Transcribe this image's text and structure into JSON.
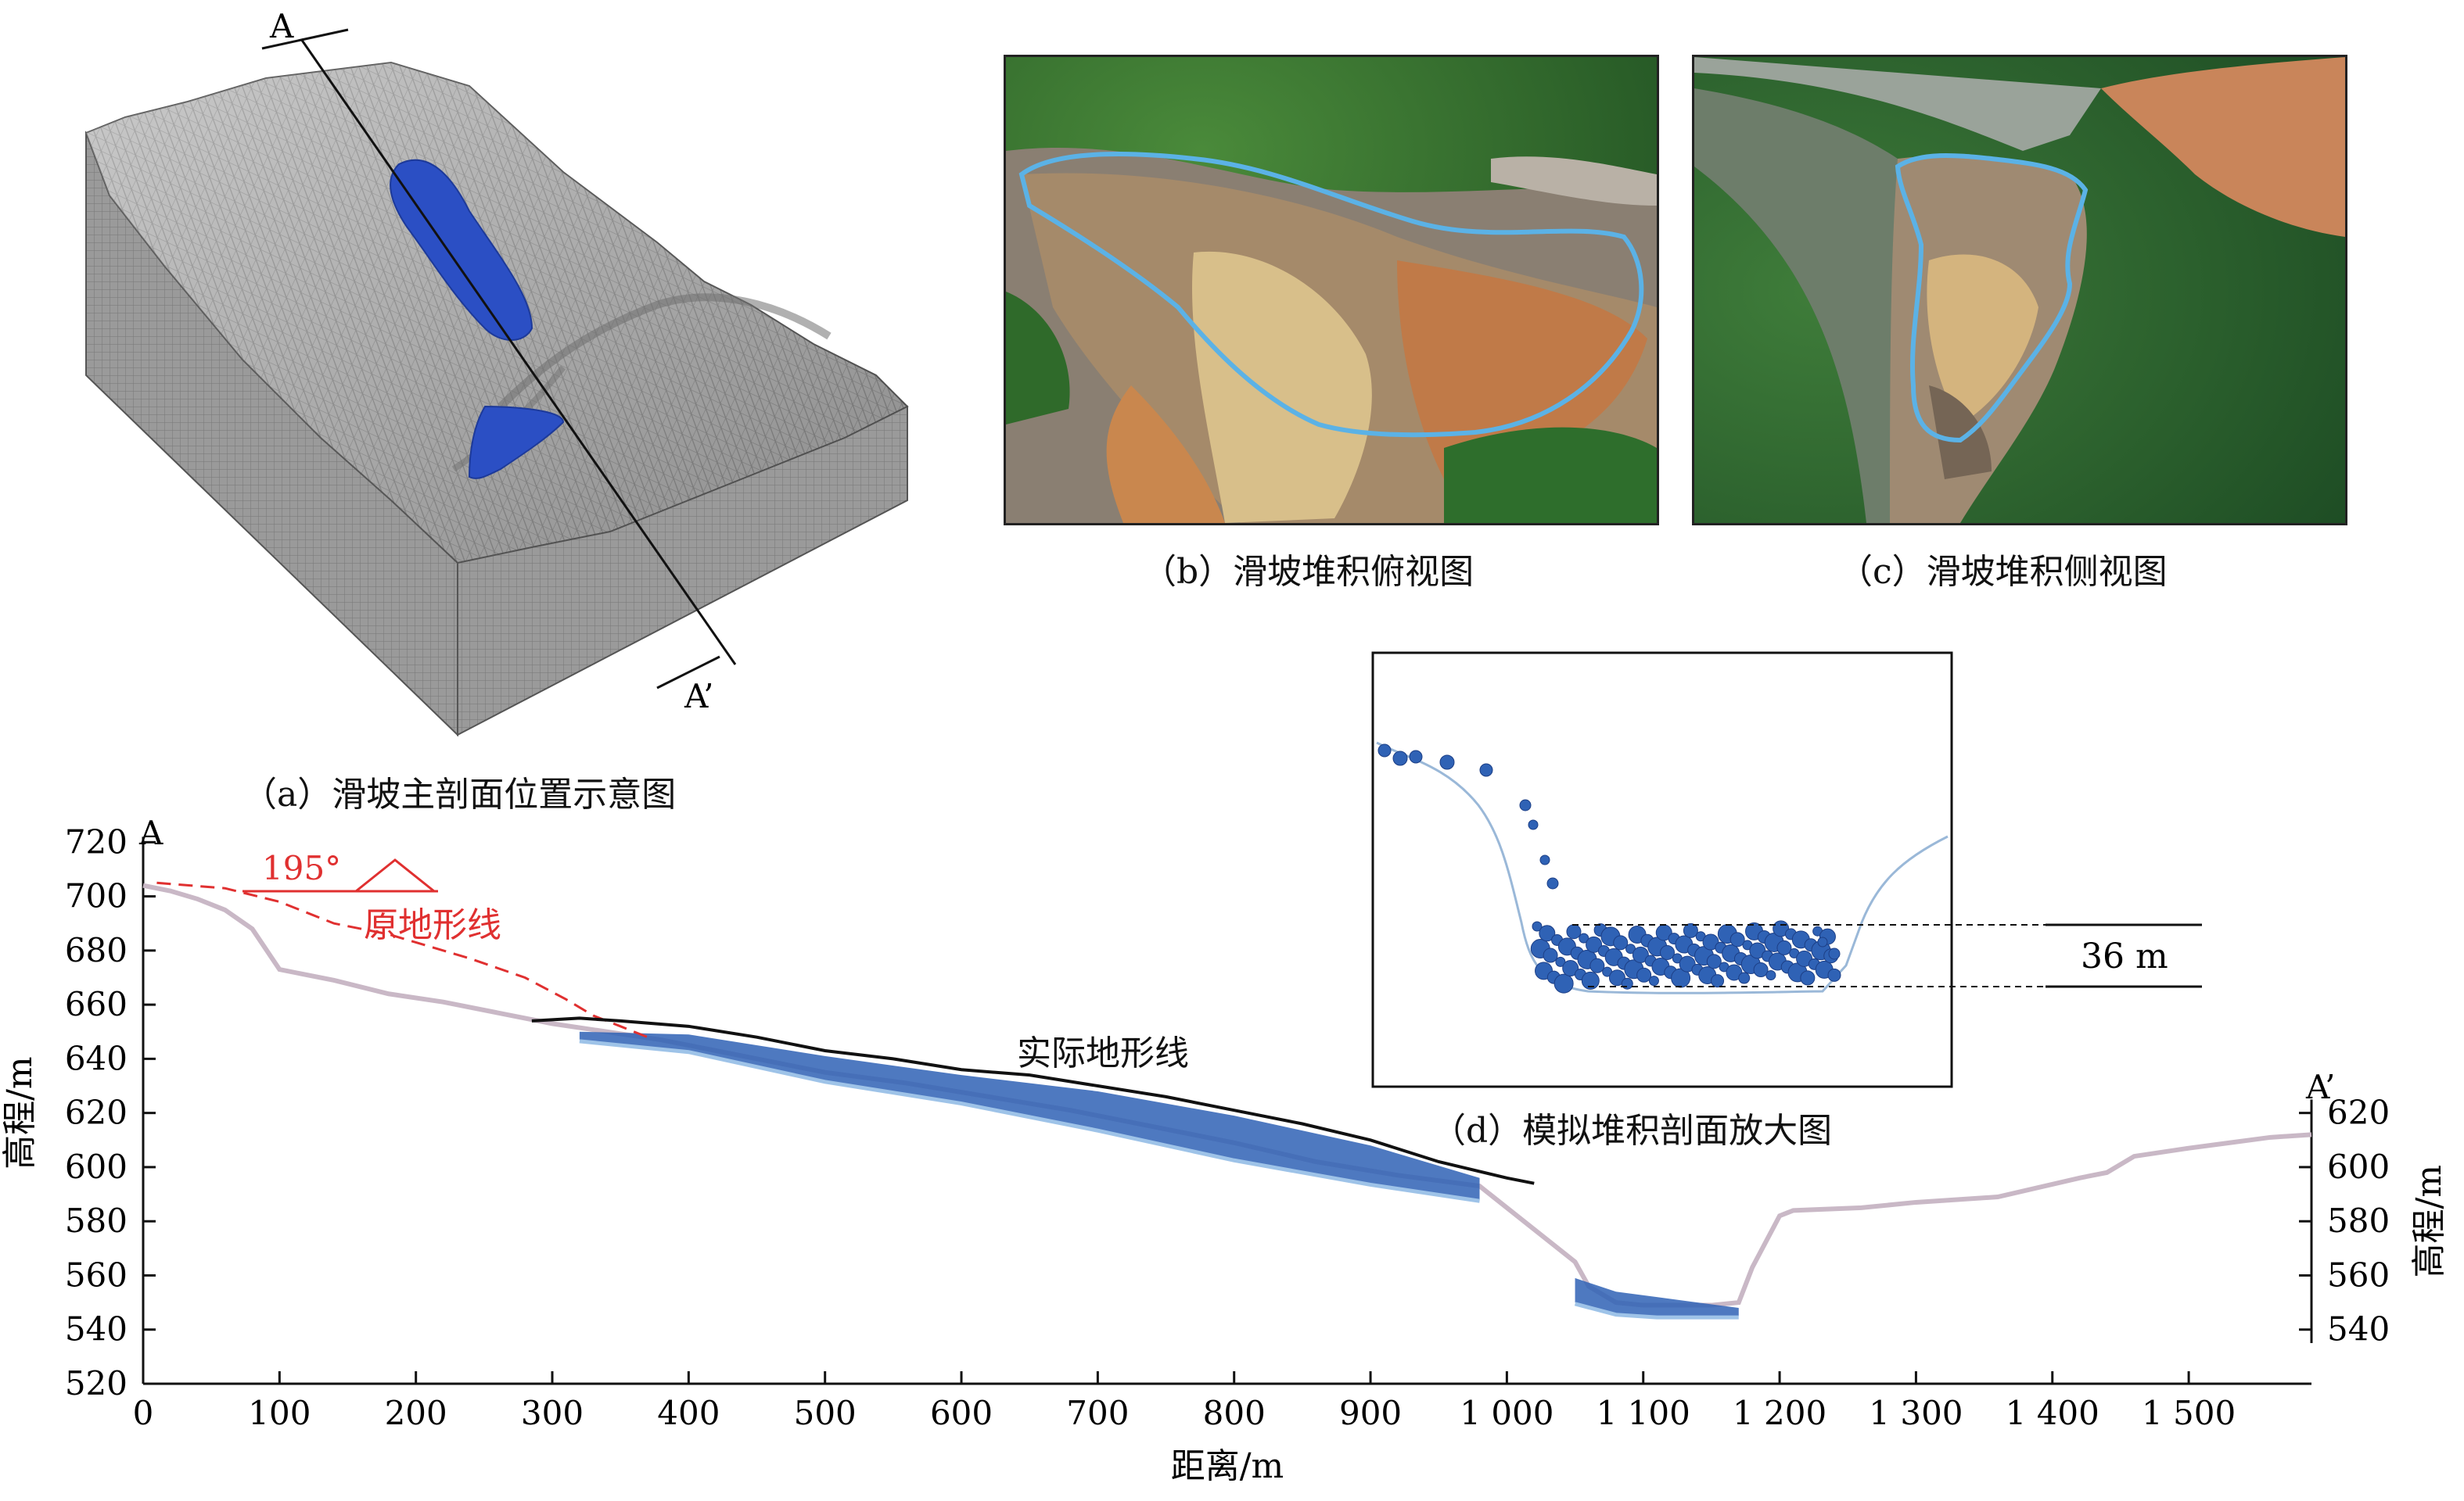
{
  "panels": {
    "a": {
      "caption": "（a）滑坡主剖面位置示意图",
      "label_start": "A",
      "label_end": "A’"
    },
    "b": {
      "caption": "（b）滑坡堆积俯视图"
    },
    "c": {
      "caption": "（c）滑坡堆积侧视图"
    },
    "d": {
      "caption": "（d）模拟堆积剖面放大图",
      "thickness_label": "36 m"
    }
  },
  "profile": {
    "label_start": "A",
    "label_end": "A’",
    "direction_label": "195°",
    "original_line_label": "原地形线",
    "actual_line_label": "实际地形线"
  },
  "chart_data": {
    "type": "line",
    "xlabel": "距离/m",
    "ylabel_left": "高程/m",
    "ylabel_right": "高程/m",
    "xlim": [
      0,
      1590
    ],
    "ylim": [
      520,
      725
    ],
    "x_ticks": [
      0,
      100,
      200,
      300,
      400,
      500,
      600,
      700,
      800,
      900,
      1000,
      1100,
      1200,
      1300,
      1400,
      1500
    ],
    "x_tick_labels": [
      "0",
      "100",
      "200",
      "300",
      "400",
      "500",
      "600",
      "700",
      "800",
      "900",
      "1 000",
      "1 100",
      "1 200",
      "1 300",
      "1 400",
      "1 500"
    ],
    "y_ticks_left": [
      520,
      540,
      560,
      580,
      600,
      620,
      640,
      660,
      680,
      700,
      720
    ],
    "y_ticks_right": [
      540,
      560,
      580,
      600,
      620
    ],
    "colors": {
      "original": "#e03030",
      "actual": "#111111",
      "terrain": "#c9b8c6",
      "deposit": "#2f62b5"
    },
    "series": [
      {
        "name": "原地形线",
        "style": "dashed",
        "x": [
          10,
          60,
          100,
          140,
          180,
          200,
          240,
          280,
          310,
          330,
          350,
          370
        ],
        "y": [
          705,
          703,
          698,
          690,
          686,
          683,
          677,
          670,
          662,
          656,
          652,
          648
        ]
      },
      {
        "name": "实际地形线",
        "style": "solid",
        "x": [
          285,
          320,
          350,
          400,
          450,
          500,
          550,
          600,
          650,
          700,
          750,
          800,
          850,
          900,
          950,
          1000,
          1020
        ],
        "y": [
          654,
          655,
          654,
          652,
          648,
          643,
          640,
          636,
          634,
          630,
          626,
          621,
          616,
          610,
          602,
          596,
          594
        ]
      },
      {
        "style": "terrain",
        "x": [
          0,
          20,
          40,
          60,
          80,
          100,
          140,
          180,
          220,
          260,
          300,
          340,
          380,
          420,
          460,
          500,
          560,
          620,
          680,
          740,
          800,
          860,
          920,
          980,
          1050,
          1060,
          1080,
          1100,
          1120,
          1150,
          1170,
          1180,
          1200,
          1210,
          1260,
          1300,
          1360,
          1420,
          1440,
          1460,
          1500,
          1530,
          1560,
          1590
        ],
        "y": [
          704,
          702,
          699,
          695,
          688,
          673,
          669,
          664,
          661,
          657,
          653,
          650,
          647,
          643,
          639,
          635,
          631,
          626,
          621,
          615,
          609,
          602,
          597,
          593,
          565,
          556,
          550,
          549,
          549,
          549,
          550,
          563,
          582,
          584,
          585,
          587,
          589,
          596,
          598,
          604,
          607,
          609,
          611,
          612
        ]
      },
      {
        "style": "deposit",
        "x": [
          320,
          400,
          500,
          600,
          700,
          800,
          900,
          980
        ],
        "y_top": [
          650,
          649,
          641,
          634,
          628,
          619,
          608,
          596
        ],
        "y_bottom": [
          647,
          643,
          632,
          624,
          614,
          603,
          594,
          588
        ]
      },
      {
        "style": "deposit",
        "x": [
          1050,
          1080,
          1110,
          1140,
          1170
        ],
        "y_top": [
          559,
          554,
          552,
          550,
          548
        ],
        "y_bottom": [
          550,
          546,
          545,
          545,
          545
        ]
      }
    ]
  }
}
